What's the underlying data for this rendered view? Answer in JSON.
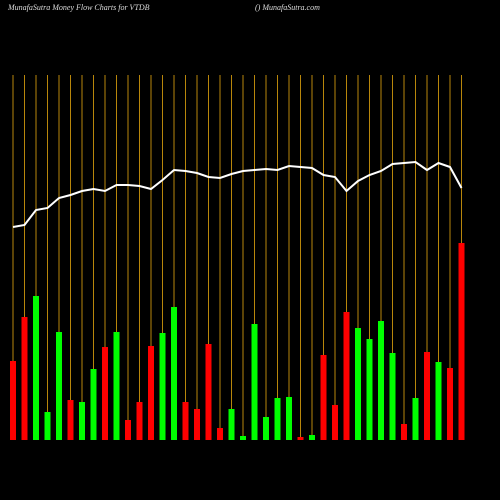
{
  "chart_data": {
    "type": "bar",
    "title": "MunafaSutra  Money Flow  Charts for VTDB",
    "subtitle": "() MunafaSutra.com",
    "ylim": [
      0,
      365
    ],
    "categories": [
      null,
      null,
      null,
      null,
      null,
      null,
      null,
      null,
      null,
      null,
      null,
      null,
      null,
      null,
      null,
      null,
      null,
      null,
      null,
      null,
      null,
      null,
      null,
      null,
      null,
      null,
      null,
      null,
      null,
      null,
      null,
      null,
      null,
      null,
      null,
      null,
      null,
      null,
      null,
      null
    ],
    "series": [
      {
        "color": "bars",
        "values": [
          79,
          123,
          144,
          28,
          108,
          40,
          38,
          71,
          93,
          108,
          20,
          38,
          94,
          107,
          133,
          38,
          31,
          96,
          12,
          31,
          4,
          116,
          23,
          42,
          43,
          3,
          5,
          85,
          35,
          128,
          112,
          101,
          119,
          87,
          16,
          42,
          88,
          78,
          72,
          197
        ],
        "colors": [
          "#ff0000",
          "#ff0000",
          "#00ff00",
          "#00ff00",
          "#00ff00",
          "#ff0000",
          "#00ff00",
          "#00ff00",
          "#ff0000",
          "#00ff00",
          "#ff0000",
          "#ff0000",
          "#ff0000",
          "#00ff00",
          "#00ff00",
          "#ff0000",
          "#ff0000",
          "#ff0000",
          "#ff0000",
          "#00ff00",
          "#00ff00",
          "#00ff00",
          "#00ff00",
          "#00ff00",
          "#00ff00",
          "#ff0000",
          "#00ff00",
          "#ff0000",
          "#ff0000",
          "#ff0000",
          "#00ff00",
          "#00ff00",
          "#00ff00",
          "#00ff00",
          "#ff0000",
          "#00ff00",
          "#ff0000",
          "#00ff00",
          "#ff0000",
          "#ff0000"
        ]
      },
      {
        "color": "#ffffff",
        "values": [
          213,
          215,
          230,
          232,
          242,
          245,
          249,
          251,
          249,
          255,
          255,
          254,
          251,
          260,
          270,
          269,
          267,
          263,
          262,
          266,
          269,
          270,
          271,
          270,
          274,
          273,
          272,
          265,
          263,
          249,
          259,
          265,
          269,
          276,
          277,
          278,
          270,
          277,
          273,
          252
        ]
      }
    ],
    "gridColor": "#b8860b"
  }
}
